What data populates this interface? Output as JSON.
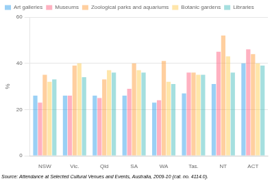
{
  "chart_data": {
    "type": "bar",
    "categories": [
      "NSW",
      "Vic.",
      "Qld",
      "SA",
      "WA",
      "Tas.",
      "NT",
      "ACT"
    ],
    "series": [
      {
        "name": "Art galleries",
        "values": [
          26,
          26,
          26,
          26,
          23,
          27,
          31,
          40
        ]
      },
      {
        "name": "Museums",
        "values": [
          23,
          26,
          25,
          29,
          24,
          36,
          45,
          46
        ]
      },
      {
        "name": "Zoological parks and aquariums",
        "values": [
          35,
          39,
          33,
          40,
          41,
          36,
          52,
          44
        ]
      },
      {
        "name": "Botanic gardens",
        "values": [
          32,
          40,
          37,
          37,
          32,
          35,
          43,
          40
        ]
      },
      {
        "name": "Libraries",
        "values": [
          33,
          34,
          36,
          36,
          31,
          35,
          36,
          39
        ]
      }
    ],
    "y_label": "%",
    "annotations": [
      "Source: Attendance at Selected Cultural Venues and Events, Australia, 2009-10 (cat. no. 4114.0)."
    ],
    "ylim": [
      0,
      60
    ],
    "yticks": [
      0,
      20,
      40,
      60
    ],
    "grid": true,
    "legend": "top left"
  }
}
